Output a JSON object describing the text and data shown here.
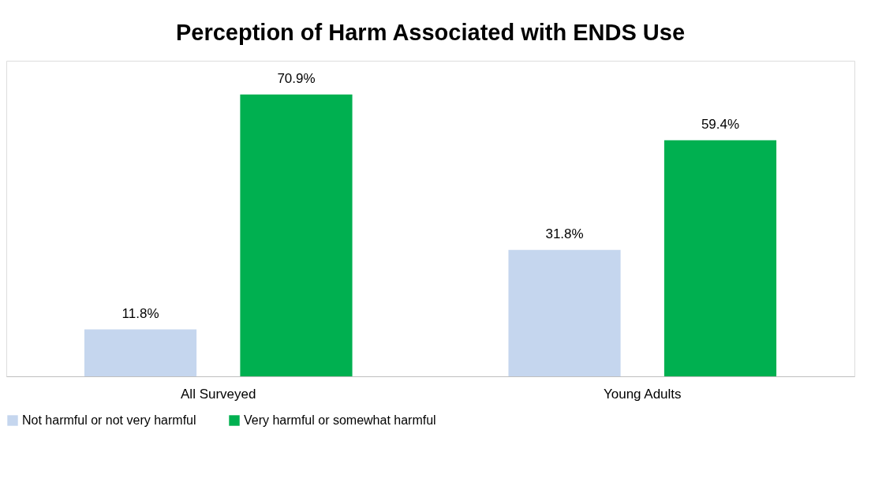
{
  "chart_data": {
    "type": "bar",
    "title": "Perception of Harm Associated with ENDS Use",
    "categories": [
      "All Surveyed",
      "Young Adults"
    ],
    "legend": "bottom",
    "grid": false,
    "series": [
      {
        "name": "Not harmful or not very harmful",
        "color": "#c5d6ee",
        "values": [
          11.8,
          31.8
        ],
        "value_labels": [
          "11.8%",
          "31.8%"
        ]
      },
      {
        "name": "Very harmful or somewhat harmful",
        "color": "#00b050",
        "values": [
          70.9,
          59.4
        ],
        "value_labels": [
          "70.9%",
          "59.4%"
        ]
      }
    ]
  }
}
